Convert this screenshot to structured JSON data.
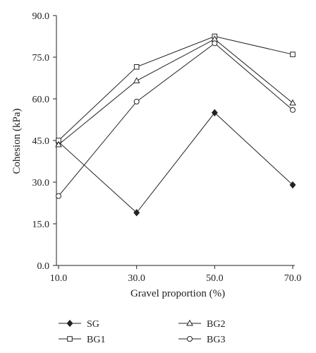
{
  "chart_data": {
    "type": "line",
    "title": "",
    "xlabel": "Gravel proportion (%)",
    "ylabel": "Cohesion (kPa)",
    "categories": [
      "10.0",
      "30.0",
      "50.0",
      "70.0"
    ],
    "x": [
      10,
      30,
      50,
      70
    ],
    "ylim": [
      0,
      90
    ],
    "yticks": [
      "0.0",
      "15.0",
      "30.0",
      "45.0",
      "60.0",
      "75.0",
      "90.0"
    ],
    "ytick_values": [
      0,
      15,
      30,
      45,
      60,
      75,
      90
    ],
    "grid": false,
    "legend_position": "bottom",
    "series": [
      {
        "name": "SG",
        "marker": "filled-diamond",
        "values": [
          44.5,
          19.0,
          55.0,
          29.0
        ]
      },
      {
        "name": "BG1",
        "marker": "open-square",
        "values": [
          45.0,
          71.5,
          82.5,
          76.0
        ]
      },
      {
        "name": "BG2",
        "marker": "open-triangle",
        "values": [
          43.5,
          66.5,
          81.5,
          58.5
        ]
      },
      {
        "name": "BG3",
        "marker": "open-circle",
        "values": [
          25.0,
          59.0,
          80.0,
          56.0
        ]
      }
    ],
    "colors": {
      "line": "#222222",
      "marker_fill_open": "#ffffff",
      "marker_fill_solid": "#222222"
    }
  }
}
